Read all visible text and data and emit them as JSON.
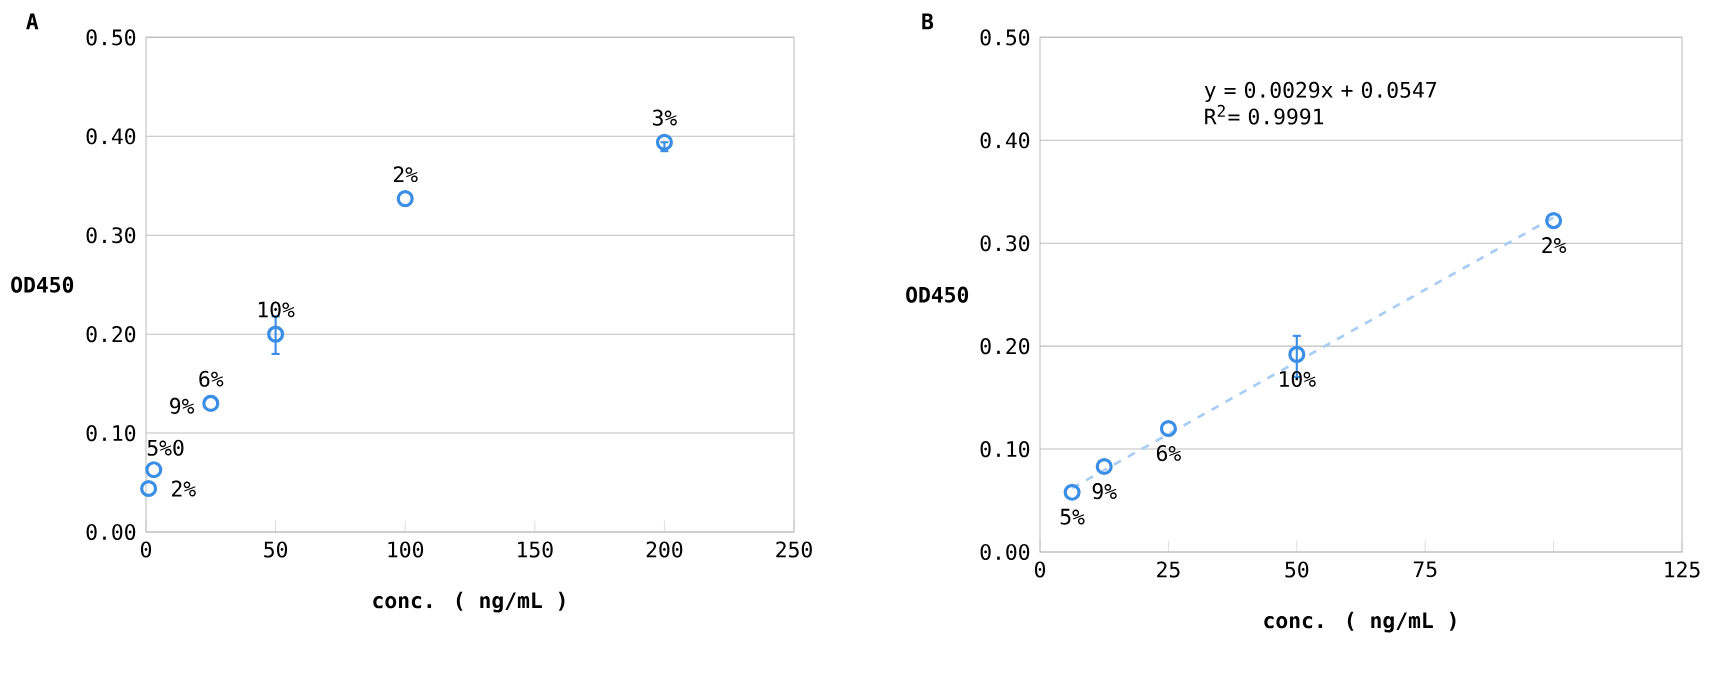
{
  "chart_data": [
    {
      "type": "scatter",
      "title": "A",
      "xlabel": "conc. ( ng/mL )",
      "ylabel": "OD450",
      "xlim": [
        0,
        250
      ],
      "xticks": [
        0,
        50,
        100,
        150,
        200,
        250
      ],
      "ylim": [
        0,
        0.5
      ],
      "yticks": [
        {
          "value": 0,
          "label": "0.00"
        },
        {
          "value": 0.1,
          "label": "0.10"
        },
        {
          "value": 0.2,
          "label": "0.20"
        },
        {
          "value": 0.3,
          "label": "0.30"
        },
        {
          "value": 0.4,
          "label": "0.40"
        },
        {
          "value": 0.5,
          "label": "0.50"
        }
      ],
      "grid": "y",
      "series": [
        {
          "color": "#3a8ee6",
          "marker": "circle",
          "x": [
            1,
            3,
            25,
            50,
            100,
            200
          ],
          "values": [
            0.044,
            0.063,
            0.13,
            0.2,
            0.337,
            0.394
          ],
          "errors": [
            null,
            null,
            null,
            [
              0.18,
              0.218
            ],
            null,
            [
              0.385,
              0.394
            ]
          ]
        }
      ],
      "annotations": [
        {
          "text": "2%",
          "x": 1,
          "y": 0.044
        },
        {
          "text": "5%0",
          "x": 3,
          "y": 0.063
        },
        {
          "text": "6%",
          "x": 25,
          "y": 0.13
        },
        {
          "text": "10%",
          "x": 50,
          "y": 0.2
        },
        {
          "text": "2%",
          "x": 100,
          "y": 0.337
        },
        {
          "text": "3%",
          "x": 200,
          "y": 0.394
        },
        "9%"
      ]
    },
    {
      "type": "scatter",
      "title": "B",
      "xlabel": "conc. ( ng/mL )",
      "ylabel": "OD450",
      "xlim": [
        0,
        125
      ],
      "xticks": [
        0,
        25,
        50,
        75,
        {
          "value": 100,
          "label": null
        },
        125
      ],
      "ylim": [
        0,
        0.5
      ],
      "yticks": [
        {
          "value": 0,
          "label": "0.00"
        },
        {
          "value": 0.1,
          "label": "0.10"
        },
        {
          "value": 0.2,
          "label": "0.20"
        },
        {
          "value": 0.3,
          "label": "0.30"
        },
        {
          "value": 0.4,
          "label": "0.40"
        },
        {
          "value": 0.5,
          "label": "0.50"
        }
      ],
      "grid": "y",
      "series": [
        {
          "type": "line",
          "color": "#a8cdf5",
          "line_style": "dashed",
          "x": [
            6.25,
            100
          ],
          "values": [
            0.062,
            0.325
          ]
        },
        {
          "color": "#3a8ee6",
          "marker": "circle",
          "x": [
            6.25,
            12.5,
            25,
            50,
            100
          ],
          "values": [
            0.058,
            0.083,
            0.12,
            0.192,
            0.322
          ],
          "errors": [
            null,
            null,
            null,
            [
              0.17,
              0.21
            ],
            null
          ]
        }
      ],
      "annotations": [
        {
          "text": "5%",
          "x": 6.25,
          "y": 0.058
        },
        {
          "text": "9%",
          "x": 12.5,
          "y": 0.083
        },
        {
          "text": "6%",
          "x": 25,
          "y": 0.12
        },
        {
          "text": "10%",
          "x": 50,
          "y": 0.192
        },
        {
          "text": "2%",
          "x": 100,
          "y": 0.322
        },
        "y = 0.0029x + 0.0547 R$^{2}$= 0.9991"
      ]
    }
  ]
}
